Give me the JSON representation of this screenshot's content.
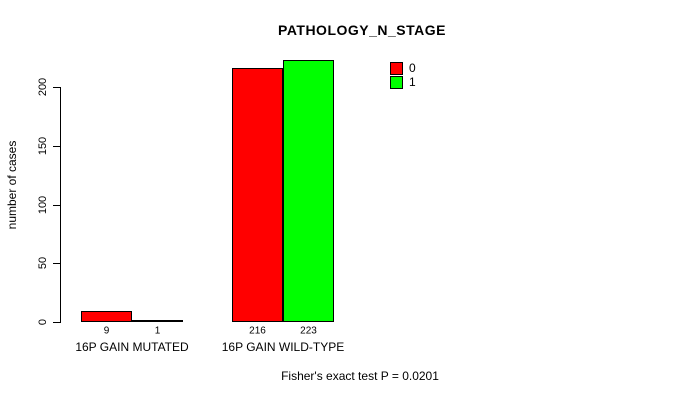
{
  "title": "PATHOLOGY_N_STAGE",
  "chart_data": {
    "type": "bar",
    "title": "PATHOLOGY_N_STAGE",
    "categories": [
      "16P GAIN MUTATED",
      "16P GAIN WILD-TYPE"
    ],
    "series": [
      {
        "name": "0",
        "color": "#FF0000",
        "values": [
          9,
          216
        ]
      },
      {
        "name": "1",
        "color": "#00FF00",
        "values": [
          1,
          223
        ]
      }
    ],
    "xlabel": "",
    "ylabel": "number of cases",
    "yticks": [
      0,
      50,
      100,
      150,
      200
    ],
    "ylim": [
      0,
      200
    ],
    "grid": false,
    "legend_position": "top-right",
    "footnote": "Fisher's exact test P = 0.0201"
  }
}
